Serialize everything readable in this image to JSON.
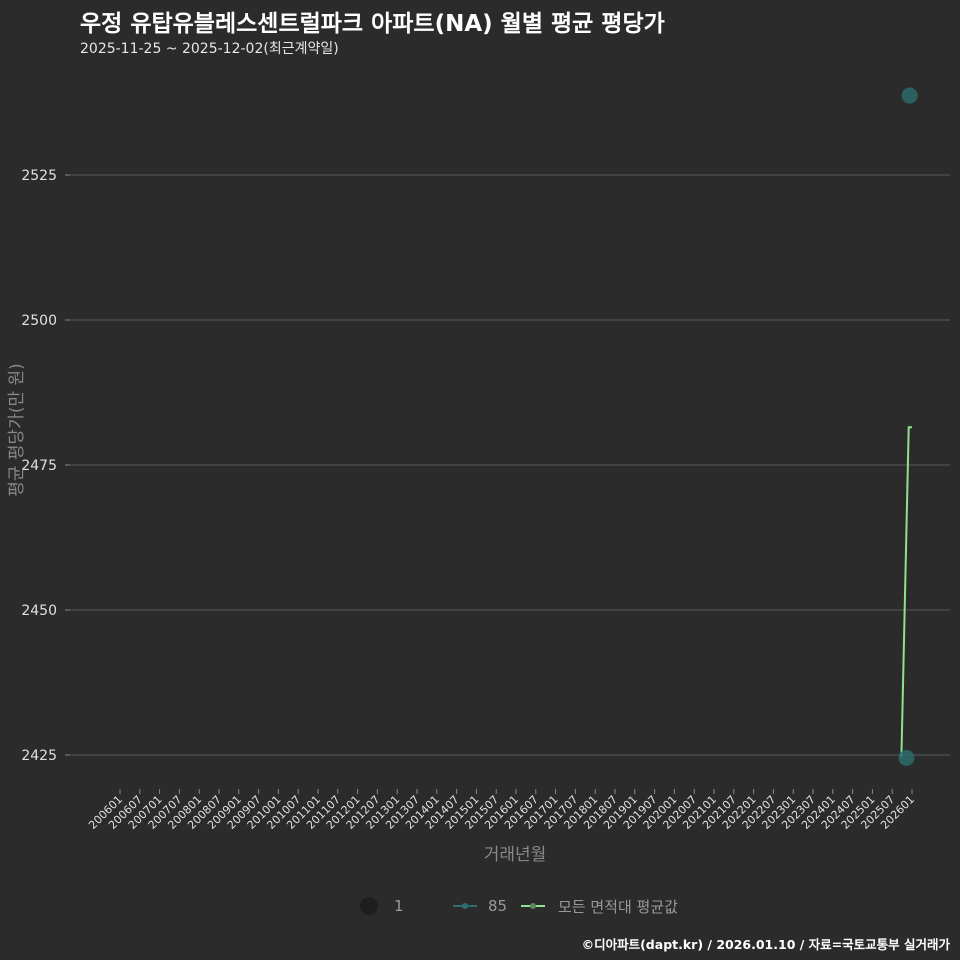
{
  "header": {
    "title": "우정 유탑유블레스센트럴파크 아파트(NA) 월별 평균 평당가",
    "subtitle": "2025-11-25 ~ 2025-12-02(최근계약일)"
  },
  "axes": {
    "ylabel": "평균 평당가(만 원)",
    "xlabel": "거래년월",
    "yticks": [
      "2425",
      "2450",
      "2475",
      "2500",
      "2525"
    ]
  },
  "legend": {
    "items": [
      {
        "label": "1",
        "type": "point",
        "color": "#1e1e1e"
      },
      {
        "label": "85",
        "type": "line-point",
        "color": "#2e6e6e"
      },
      {
        "label": "모든 면적대 평균값",
        "type": "line-point",
        "color": "#90e090"
      }
    ]
  },
  "caption": "©디아파트(dapt.kr) / 2026.01.10 / 자료=국토교통부 실거래가",
  "colors": {
    "background": "#2b2b2b",
    "grid": "#5a5a5a",
    "point_85": "#2e6b6b",
    "avg_line": "#8fe08f"
  },
  "chart_data": {
    "type": "line",
    "title": "우정 유탑유블레스센트럴파크 아파트(NA) 월별 평균 평당가",
    "subtitle": "2025-11-25 ~ 2025-12-02(최근계약일)",
    "xlabel": "거래년월",
    "ylabel": "평균 평당가(만 원)",
    "ylim": [
      2418,
      2543
    ],
    "grid": true,
    "legend_position": "bottom",
    "x_ticks": [
      "200601",
      "200607",
      "200701",
      "200707",
      "200801",
      "200807",
      "200901",
      "200907",
      "201001",
      "201007",
      "201101",
      "201107",
      "201201",
      "201207",
      "201301",
      "201307",
      "201401",
      "201407",
      "201501",
      "201507",
      "201601",
      "201607",
      "201701",
      "201707",
      "201801",
      "201807",
      "201901",
      "201907",
      "202001",
      "202007",
      "202101",
      "202107",
      "202201",
      "202207",
      "202301",
      "202307",
      "202401",
      "202407",
      "202501",
      "202507",
      "202601"
    ],
    "series": [
      {
        "name": "85",
        "type": "scatter",
        "points": [
          {
            "x": "202511",
            "y": 2424.5
          },
          {
            "x": "202512",
            "y": 2538.7
          }
        ]
      },
      {
        "name": "모든 면적대 평균값",
        "type": "step-line",
        "points": [
          {
            "x": "202511",
            "y": 2424.5
          },
          {
            "x": "202512",
            "y": 2481.5
          },
          {
            "x": "202601",
            "y": 2481.5
          }
        ]
      }
    ]
  }
}
